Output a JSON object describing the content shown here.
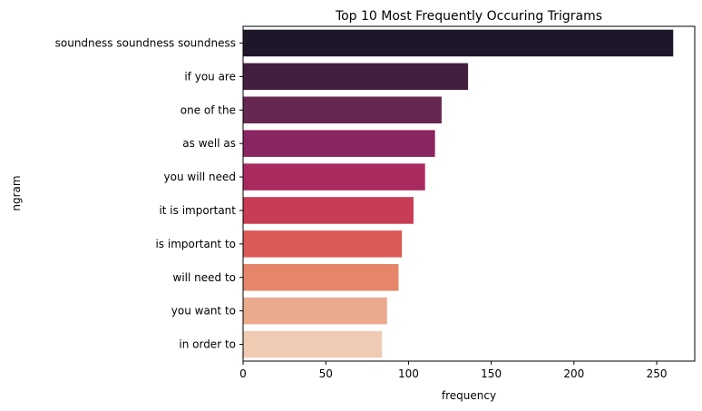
{
  "chart_data": {
    "type": "bar",
    "orientation": "horizontal",
    "title": "Top 10 Most Frequently Occuring Trigrams",
    "xlabel": "frequency",
    "ylabel": "ngram",
    "categories": [
      "soundness soundness soundness",
      "if you are",
      "one of the",
      "as well as",
      "you will need",
      "it is important",
      "is important to",
      "will need to",
      "you want to",
      "in order to"
    ],
    "values": [
      260,
      136,
      120,
      116,
      110,
      103,
      96,
      94,
      87,
      84
    ],
    "xlim": [
      0,
      273
    ],
    "xticks": [
      "0",
      "50",
      "100",
      "150",
      "200",
      "250"
    ],
    "grid": false,
    "colors": [
      "#1f1729",
      "#421f3f",
      "#662851",
      "#892560",
      "#a92a5f",
      "#c83c55",
      "#da5b55",
      "#e5866a",
      "#ebaa8d",
      "#efcbb4"
    ]
  }
}
